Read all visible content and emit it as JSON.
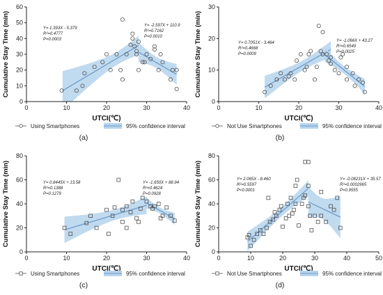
{
  "colors": {
    "band": "#b5d3ec",
    "line": "#6e9ccc",
    "marker": "#505050",
    "axis": "#222222"
  },
  "chart_data": [
    {
      "type": "scatter",
      "caption": "(a)",
      "xlabel": "UTCI(℃)",
      "ylabel": "Cumulative Stay Time (min)",
      "xlim": [
        0,
        40
      ],
      "ylim": [
        0,
        60
      ],
      "xticks": [
        "0",
        "10",
        "20",
        "30",
        "40"
      ],
      "yticks": [
        "0",
        "10",
        "20",
        "30",
        "40",
        "50",
        "60"
      ],
      "marker": "circle",
      "points": [
        [
          8.8,
          7
        ],
        [
          12.5,
          7
        ],
        [
          14,
          10
        ],
        [
          14.5,
          18
        ],
        [
          17,
          22
        ],
        [
          19,
          25
        ],
        [
          20,
          30
        ],
        [
          21,
          20
        ],
        [
          22.5,
          30
        ],
        [
          23.5,
          20
        ],
        [
          24,
          14
        ],
        [
          24,
          52
        ],
        [
          25,
          30
        ],
        [
          26,
          36
        ],
        [
          26.5,
          40
        ],
        [
          26.5,
          43
        ],
        [
          27,
          35
        ],
        [
          27.5,
          32
        ],
        [
          27.5,
          30
        ],
        [
          28,
          38
        ],
        [
          28,
          20
        ],
        [
          29,
          25
        ],
        [
          29.5,
          25
        ],
        [
          30,
          30
        ],
        [
          31,
          27
        ],
        [
          32,
          33
        ],
        [
          32,
          35
        ],
        [
          33,
          20
        ],
        [
          33.5,
          30
        ],
        [
          34,
          25
        ],
        [
          36,
          14
        ],
        [
          36.5,
          20
        ],
        [
          37.5,
          20
        ],
        [
          37.5,
          8
        ]
      ],
      "fit_left": {
        "x_range": [
          9,
          28
        ],
        "equation": "Y= 1.393X - 5.379",
        "r2": "R²=0.4777",
        "p": "P=0.0003"
      },
      "fit_right": {
        "x_range": [
          28,
          37.5
        ],
        "equation": "Y= -2.597X + 110.9",
        "r2": "R²=0.7162",
        "p": "P=0.0010"
      },
      "legend": [
        {
          "marker": "circle",
          "label": "Using Smartphones"
        },
        {
          "marker": "band",
          "label": "95% confidence interval"
        }
      ]
    },
    {
      "type": "scatter",
      "caption": "(b)",
      "xlabel": "UTCI(℃)",
      "ylabel": "Cumulative Stay Time (min)",
      "xlim": [
        0,
        40
      ],
      "ylim": [
        0,
        30
      ],
      "xticks": [
        "0",
        "10",
        "20",
        "30",
        "40"
      ],
      "yticks": [
        "0",
        "10",
        "20",
        "30"
      ],
      "marker": "circle",
      "points": [
        [
          11.5,
          3
        ],
        [
          13,
          5
        ],
        [
          14.5,
          7
        ],
        [
          15.5,
          9
        ],
        [
          16.5,
          7
        ],
        [
          17.5,
          8
        ],
        [
          18,
          9
        ],
        [
          19,
          7
        ],
        [
          19.5,
          13
        ],
        [
          20.5,
          15
        ],
        [
          21.5,
          10
        ],
        [
          22,
          11
        ],
        [
          22.5,
          15
        ],
        [
          23,
          16
        ],
        [
          24,
          7
        ],
        [
          24.5,
          11
        ],
        [
          25,
          24
        ],
        [
          25.5,
          16
        ],
        [
          26,
          22
        ],
        [
          26,
          15
        ],
        [
          27,
          15
        ],
        [
          27.5,
          13
        ],
        [
          28,
          12
        ],
        [
          28,
          14
        ],
        [
          29,
          10
        ],
        [
          30,
          9
        ],
        [
          30.5,
          14
        ],
        [
          31,
          15
        ],
        [
          32,
          11
        ],
        [
          32,
          7
        ],
        [
          33.5,
          9
        ],
        [
          34,
          5
        ],
        [
          35,
          7
        ],
        [
          36,
          6
        ],
        [
          36.5,
          3
        ]
      ],
      "fit_left": {
        "x_range": [
          11.5,
          28
        ],
        "equation": "Y= 0.7051X - 3.464",
        "r2": "R²=0.4668",
        "p": "P=0.0009"
      },
      "fit_right": {
        "x_range": [
          26.5,
          36.5
        ],
        "equation": "Y= -1.066X + 43.27",
        "r2": "R²=0.6549",
        "p": "P=0.0025"
      },
      "legend": [
        {
          "marker": "circle",
          "label": "Not Use Smartphones"
        },
        {
          "marker": "band",
          "label": "95% confidence interval"
        }
      ]
    },
    {
      "type": "scatter",
      "caption": "(c)",
      "xlabel": "UTCI(℃)",
      "ylabel": "Cumulative Stay Time (min)",
      "xlim": [
        0,
        40
      ],
      "ylim": [
        0,
        80
      ],
      "xticks": [
        "0",
        "10",
        "20",
        "30",
        "40"
      ],
      "yticks": [
        "0",
        "20",
        "40",
        "60",
        "80"
      ],
      "marker": "square",
      "points": [
        [
          9.5,
          20
        ],
        [
          11,
          15
        ],
        [
          15,
          24
        ],
        [
          16,
          30
        ],
        [
          17.5,
          20
        ],
        [
          20,
          35
        ],
        [
          20.5,
          15
        ],
        [
          21.5,
          30
        ],
        [
          22,
          37
        ],
        [
          23,
          60
        ],
        [
          24,
          25
        ],
        [
          24,
          35
        ],
        [
          25,
          20
        ],
        [
          25,
          38
        ],
        [
          26,
          33
        ],
        [
          26.5,
          42
        ],
        [
          27.5,
          28
        ],
        [
          28,
          25
        ],
        [
          28.5,
          36
        ],
        [
          29,
          45
        ],
        [
          30,
          42
        ],
        [
          31,
          38
        ],
        [
          31.5,
          36
        ],
        [
          32,
          38
        ],
        [
          33,
          40
        ],
        [
          33.5,
          28
        ],
        [
          34,
          30
        ],
        [
          35,
          37
        ],
        [
          36,
          30
        ],
        [
          37,
          26
        ]
      ],
      "fit_left": {
        "x_range": [
          9.5,
          30
        ],
        "equation": "Y= 0.8445X + 13.58",
        "r2": "R²=0.1388",
        "p": "P=0.1279"
      },
      "fit_right": {
        "x_range": [
          30,
          37
        ],
        "equation": "Y= -1.650X + 88.94",
        "r2": "R²=0.4624",
        "p": "P=0.0928"
      },
      "legend": [
        {
          "marker": "square",
          "label": "Using Smartphones"
        },
        {
          "marker": "band",
          "label": "95% confidence interval"
        }
      ]
    },
    {
      "type": "scatter",
      "caption": "(d)",
      "xlabel": "UTCI(℃)",
      "ylabel": "Cumulative Stay Time (min)",
      "xlim": [
        0,
        50
      ],
      "ylim": [
        0,
        80
      ],
      "xticks": [
        "0",
        "10",
        "20",
        "30",
        "40",
        "50"
      ],
      "yticks": [
        "0",
        "20",
        "40",
        "60",
        "80"
      ],
      "marker": "square",
      "points": [
        [
          9,
          12
        ],
        [
          9.5,
          14
        ],
        [
          10,
          5
        ],
        [
          11,
          10
        ],
        [
          12,
          15
        ],
        [
          13,
          18
        ],
        [
          14,
          15
        ],
        [
          15,
          20
        ],
        [
          15.5,
          45
        ],
        [
          16,
          25
        ],
        [
          17,
          27
        ],
        [
          17.5,
          33
        ],
        [
          18,
          30
        ],
        [
          19,
          35
        ],
        [
          19.5,
          38
        ],
        [
          20,
          21
        ],
        [
          21,
          28
        ],
        [
          21.5,
          40
        ],
        [
          22,
          30
        ],
        [
          22.5,
          45
        ],
        [
          23,
          32
        ],
        [
          23.5,
          35
        ],
        [
          24,
          40
        ],
        [
          24,
          55
        ],
        [
          24.5,
          60
        ],
        [
          25,
          22
        ],
        [
          26,
          40
        ],
        [
          26.5,
          45
        ],
        [
          27,
          75
        ],
        [
          27,
          47
        ],
        [
          28,
          75
        ],
        [
          28,
          55
        ],
        [
          28,
          38
        ],
        [
          28.5,
          30
        ],
        [
          29,
          18
        ],
        [
          30,
          30
        ],
        [
          31,
          25
        ],
        [
          32,
          50
        ],
        [
          32,
          30
        ],
        [
          33.5,
          25
        ],
        [
          35,
          38
        ],
        [
          36,
          35
        ],
        [
          37,
          45
        ],
        [
          38,
          20
        ]
      ],
      "fit_left": {
        "x_range": [
          9,
          28
        ],
        "equation": "Y= 2.065X - 8.460",
        "r2": "R²=0.5597",
        "p": "P<0.0001"
      },
      "fit_right": {
        "x_range": [
          28,
          38
        ],
        "equation": "Y= -0.08231X + 35.57",
        "r2": "R²=0.0002965",
        "p": "P=0.9555"
      },
      "legend": [
        {
          "marker": "square",
          "label": "Not Use Smartphones"
        },
        {
          "marker": "band",
          "label": "95% confidence interval"
        }
      ]
    }
  ]
}
